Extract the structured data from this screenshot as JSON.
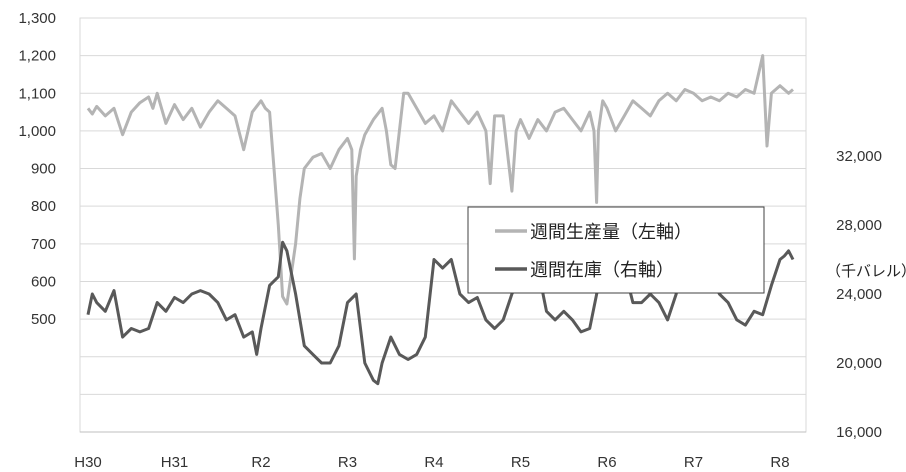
{
  "chart_data": {
    "type": "line",
    "title": "",
    "x_categories": [
      "H30",
      "H31",
      "R2",
      "R3",
      "R4",
      "R5",
      "R6",
      "R7",
      "R8"
    ],
    "left_axis": {
      "ticks": [
        "1,300",
        "1,200",
        "1,100",
        "1,000",
        "900",
        "800",
        "700",
        "600",
        "500"
      ],
      "range": [
        200,
        1300
      ]
    },
    "right_axis": {
      "unit": "（千バレル）",
      "ticks": [
        "32,000",
        "28,000",
        "24,000",
        "20,000",
        "16,000"
      ],
      "range": [
        16000,
        40000
      ]
    },
    "legend_position": "center-right",
    "grid": true,
    "series": [
      {
        "name": "週間生産量（左軸）",
        "axis": "left",
        "color": "#b4b4b4",
        "points": [
          [
            0,
            1060
          ],
          [
            0.05,
            1045
          ],
          [
            0.1,
            1065
          ],
          [
            0.2,
            1040
          ],
          [
            0.3,
            1060
          ],
          [
            0.4,
            990
          ],
          [
            0.5,
            1050
          ],
          [
            0.6,
            1075
          ],
          [
            0.7,
            1090
          ],
          [
            0.75,
            1060
          ],
          [
            0.8,
            1100
          ],
          [
            0.9,
            1020
          ],
          [
            1.0,
            1070
          ],
          [
            1.1,
            1030
          ],
          [
            1.2,
            1060
          ],
          [
            1.3,
            1010
          ],
          [
            1.4,
            1050
          ],
          [
            1.5,
            1080
          ],
          [
            1.6,
            1060
          ],
          [
            1.7,
            1040
          ],
          [
            1.8,
            950
          ],
          [
            1.85,
            1000
          ],
          [
            1.9,
            1050
          ],
          [
            2.0,
            1080
          ],
          [
            2.05,
            1060
          ],
          [
            2.1,
            1050
          ],
          [
            2.15,
            900
          ],
          [
            2.2,
            750
          ],
          [
            2.25,
            560
          ],
          [
            2.3,
            540
          ],
          [
            2.35,
            620
          ],
          [
            2.4,
            700
          ],
          [
            2.45,
            820
          ],
          [
            2.5,
            900
          ],
          [
            2.6,
            930
          ],
          [
            2.7,
            940
          ],
          [
            2.8,
            900
          ],
          [
            2.9,
            950
          ],
          [
            3.0,
            980
          ],
          [
            3.05,
            950
          ],
          [
            3.08,
            660
          ],
          [
            3.1,
            880
          ],
          [
            3.15,
            950
          ],
          [
            3.2,
            990
          ],
          [
            3.3,
            1030
          ],
          [
            3.4,
            1060
          ],
          [
            3.45,
            1000
          ],
          [
            3.5,
            910
          ],
          [
            3.55,
            900
          ],
          [
            3.6,
            1000
          ],
          [
            3.65,
            1100
          ],
          [
            3.7,
            1100
          ],
          [
            3.8,
            1060
          ],
          [
            3.9,
            1020
          ],
          [
            4.0,
            1040
          ],
          [
            4.1,
            1000
          ],
          [
            4.2,
            1080
          ],
          [
            4.3,
            1050
          ],
          [
            4.4,
            1020
          ],
          [
            4.5,
            1050
          ],
          [
            4.6,
            1000
          ],
          [
            4.65,
            860
          ],
          [
            4.7,
            1040
          ],
          [
            4.8,
            1040
          ],
          [
            4.9,
            840
          ],
          [
            4.95,
            1000
          ],
          [
            5.0,
            1030
          ],
          [
            5.1,
            980
          ],
          [
            5.2,
            1030
          ],
          [
            5.3,
            1000
          ],
          [
            5.4,
            1050
          ],
          [
            5.5,
            1060
          ],
          [
            5.6,
            1030
          ],
          [
            5.7,
            1000
          ],
          [
            5.8,
            1050
          ],
          [
            5.85,
            1000
          ],
          [
            5.88,
            810
          ],
          [
            5.9,
            1000
          ],
          [
            5.95,
            1080
          ],
          [
            6.0,
            1060
          ],
          [
            6.1,
            1000
          ],
          [
            6.2,
            1040
          ],
          [
            6.3,
            1080
          ],
          [
            6.4,
            1060
          ],
          [
            6.5,
            1040
          ],
          [
            6.6,
            1080
          ],
          [
            6.7,
            1100
          ],
          [
            6.8,
            1080
          ],
          [
            6.9,
            1110
          ],
          [
            7.0,
            1100
          ],
          [
            7.1,
            1080
          ],
          [
            7.2,
            1090
          ],
          [
            7.3,
            1080
          ],
          [
            7.4,
            1100
          ],
          [
            7.5,
            1090
          ],
          [
            7.6,
            1110
          ],
          [
            7.7,
            1100
          ],
          [
            7.8,
            1200
          ],
          [
            7.85,
            960
          ],
          [
            7.9,
            1100
          ],
          [
            8.0,
            1120
          ],
          [
            8.1,
            1100
          ],
          [
            8.15,
            1110
          ]
        ]
      },
      {
        "name": "週間在庫（右軸）",
        "axis": "right",
        "color": "#595959",
        "points": [
          [
            0,
            22800
          ],
          [
            0.05,
            24000
          ],
          [
            0.1,
            23500
          ],
          [
            0.2,
            23000
          ],
          [
            0.3,
            24200
          ],
          [
            0.4,
            21500
          ],
          [
            0.5,
            22000
          ],
          [
            0.6,
            21800
          ],
          [
            0.7,
            22000
          ],
          [
            0.8,
            23500
          ],
          [
            0.9,
            23000
          ],
          [
            1.0,
            23800
          ],
          [
            1.1,
            23500
          ],
          [
            1.2,
            24000
          ],
          [
            1.3,
            24200
          ],
          [
            1.4,
            24000
          ],
          [
            1.5,
            23500
          ],
          [
            1.6,
            22500
          ],
          [
            1.7,
            22800
          ],
          [
            1.8,
            21500
          ],
          [
            1.9,
            21800
          ],
          [
            1.95,
            20500
          ],
          [
            2.0,
            22000
          ],
          [
            2.1,
            24500
          ],
          [
            2.2,
            25000
          ],
          [
            2.25,
            27000
          ],
          [
            2.3,
            26500
          ],
          [
            2.4,
            24000
          ],
          [
            2.5,
            21000
          ],
          [
            2.6,
            20500
          ],
          [
            2.7,
            20000
          ],
          [
            2.8,
            20000
          ],
          [
            2.9,
            21000
          ],
          [
            3.0,
            23500
          ],
          [
            3.1,
            24000
          ],
          [
            3.15,
            22000
          ],
          [
            3.2,
            20000
          ],
          [
            3.3,
            19000
          ],
          [
            3.35,
            18800
          ],
          [
            3.4,
            20000
          ],
          [
            3.5,
            21500
          ],
          [
            3.6,
            20500
          ],
          [
            3.7,
            20200
          ],
          [
            3.8,
            20500
          ],
          [
            3.9,
            21500
          ],
          [
            4.0,
            26000
          ],
          [
            4.1,
            25500
          ],
          [
            4.2,
            26000
          ],
          [
            4.3,
            24000
          ],
          [
            4.4,
            23500
          ],
          [
            4.5,
            23800
          ],
          [
            4.6,
            22500
          ],
          [
            4.7,
            22000
          ],
          [
            4.8,
            22500
          ],
          [
            4.9,
            24000
          ],
          [
            5.0,
            25000
          ],
          [
            5.1,
            25500
          ],
          [
            5.15,
            26500
          ],
          [
            5.2,
            25500
          ],
          [
            5.3,
            23000
          ],
          [
            5.4,
            22500
          ],
          [
            5.5,
            23000
          ],
          [
            5.6,
            22500
          ],
          [
            5.7,
            21800
          ],
          [
            5.8,
            22000
          ],
          [
            5.9,
            24500
          ],
          [
            6.0,
            26000
          ],
          [
            6.1,
            26500
          ],
          [
            6.2,
            25500
          ],
          [
            6.3,
            23500
          ],
          [
            6.4,
            23500
          ],
          [
            6.5,
            24000
          ],
          [
            6.6,
            23500
          ],
          [
            6.7,
            22500
          ],
          [
            6.8,
            24000
          ],
          [
            6.9,
            26500
          ],
          [
            7.0,
            27000
          ],
          [
            7.1,
            26000
          ],
          [
            7.2,
            25000
          ],
          [
            7.3,
            24000
          ],
          [
            7.4,
            23500
          ],
          [
            7.5,
            22500
          ],
          [
            7.6,
            22200
          ],
          [
            7.7,
            23000
          ],
          [
            7.8,
            22800
          ],
          [
            7.9,
            24500
          ],
          [
            8.0,
            26000
          ],
          [
            8.05,
            26200
          ],
          [
            8.1,
            26500
          ],
          [
            8.15,
            26000
          ]
        ]
      }
    ]
  }
}
